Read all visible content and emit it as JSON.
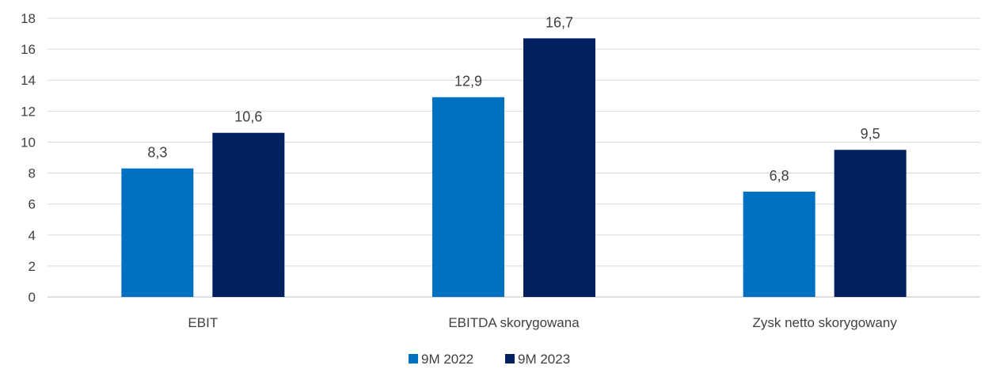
{
  "chart_data": {
    "type": "bar",
    "categories": [
      "EBIT",
      "EBITDA skorygowana",
      "Zysk netto skorygowany"
    ],
    "series": [
      {
        "name": "9M 2022",
        "values": [
          8.3,
          12.9,
          6.8
        ],
        "labels": [
          "8,3",
          "12,9",
          "6,8"
        ],
        "color": "#0070C0"
      },
      {
        "name": "9M 2023",
        "values": [
          10.6,
          16.7,
          9.5
        ],
        "labels": [
          "10,6",
          "16,7",
          "9,5"
        ],
        "color": "#002060"
      }
    ],
    "yticks": [
      "0",
      "2",
      "4",
      "6",
      "8",
      "10",
      "12",
      "14",
      "16",
      "18"
    ],
    "ylim": [
      0,
      18
    ],
    "title": "",
    "xlabel": "",
    "ylabel": "",
    "grid": true,
    "legend": "bottom-center"
  }
}
